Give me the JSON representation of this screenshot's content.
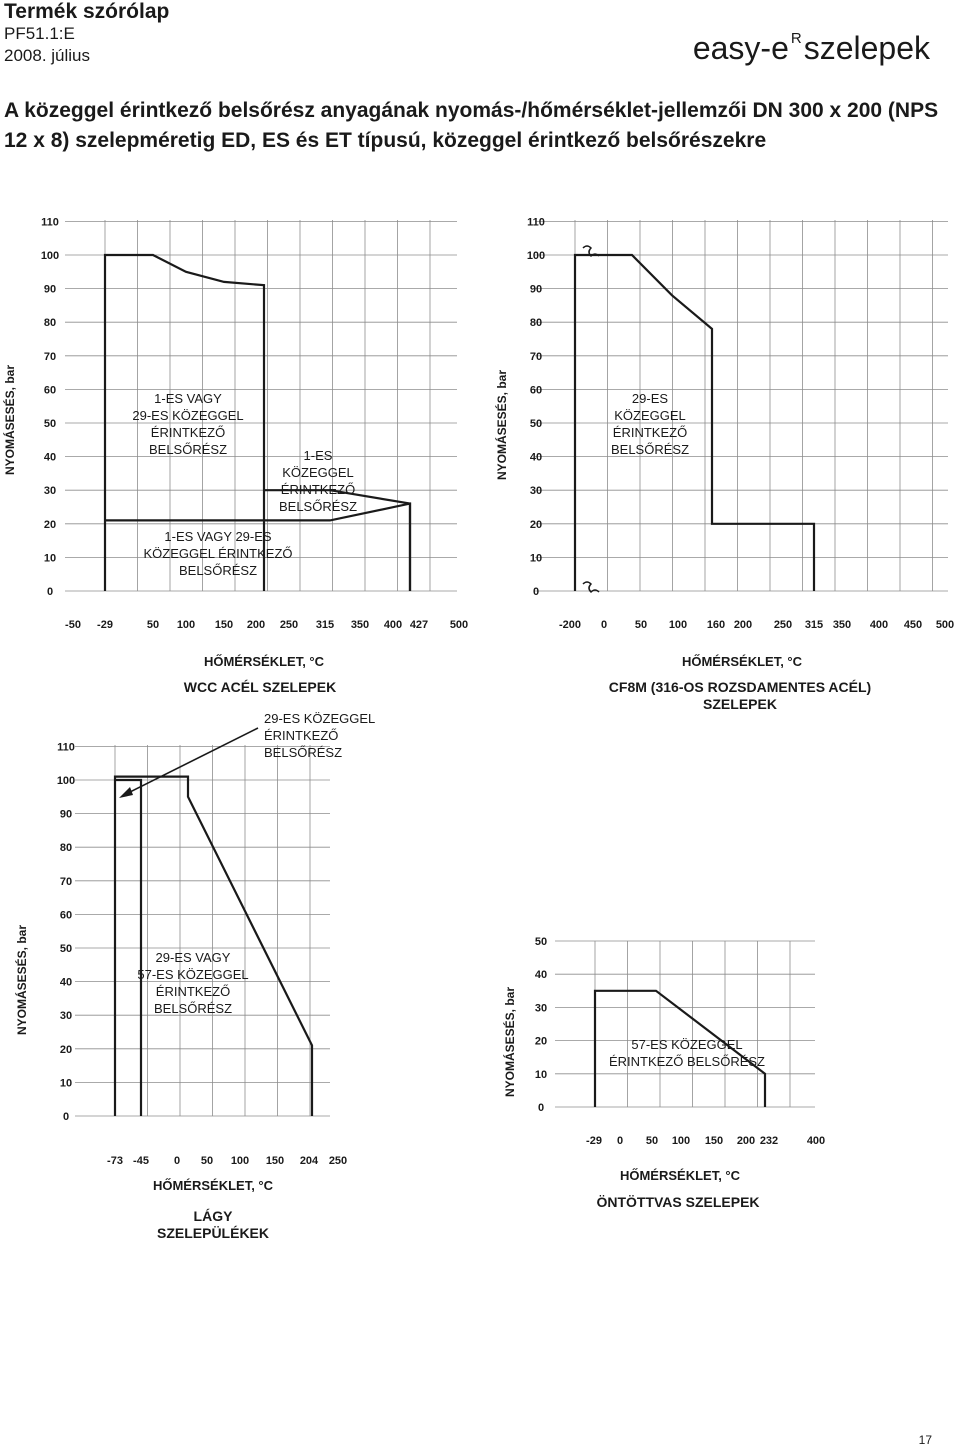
{
  "header": {
    "title": "Termék szórólap",
    "code": "PF51.1:E",
    "date": "2008. július",
    "brand_name": "easy-e",
    "brand_mark": "R",
    "brand_suffix": "szelepek"
  },
  "section_title": "A közeggel érintkező belsőrész anyagának nyomás-/hőmérséklet-jellemzői DN 300 x 200 (NPS 12 x 8) szelepméretig ED, ES és ET típusú, közeggel érintkező belsőrészekre",
  "page_number": "17",
  "chart_data": [
    {
      "type": "line",
      "ylabel": "NYOMÁSESÉS, bar",
      "xlabel": "HŐMÉRSÉKLET, °C",
      "caption": "WCC ACÉL SZELEPEK",
      "x_ticks": [
        "-50",
        "-29",
        "50",
        "100",
        "150",
        "200",
        "250",
        "315",
        "350",
        "400",
        "427",
        "500"
      ],
      "y_ticks": [
        "0",
        "10",
        "20",
        "30",
        "40",
        "50",
        "60",
        "70",
        "80",
        "90",
        "100",
        "110"
      ],
      "ylim": [
        0,
        110
      ],
      "series": [
        {
          "x": [
            -29,
            -29,
            50,
            100,
            150,
            250,
            250
          ],
          "y": [
            0,
            100,
            100,
            95,
            92,
            91,
            0
          ]
        },
        {
          "x": [
            -29,
            315,
            427,
            427
          ],
          "y": [
            21,
            21,
            26,
            0
          ]
        },
        {
          "x": [
            250,
            315,
            427,
            427
          ],
          "y": [
            30,
            30,
            26,
            0
          ]
        }
      ],
      "annotations": [
        {
          "lines": [
            "1-ES VAGY",
            "29-ES KÖZEGGEL",
            "ÉRINTKEZŐ",
            "BELSŐRÉSZ"
          ]
        },
        {
          "lines": [
            "1-ES",
            "KÖZEGGEL",
            "ÉRINTKEZŐ",
            "BELSŐRÉSZ"
          ]
        },
        {
          "lines": [
            "1-ES VAGY 29-ES",
            "KÖZEGGEL ÉRINTKEZŐ",
            "BELSŐRÉSZ"
          ]
        }
      ]
    },
    {
      "type": "line",
      "ylabel": "NYOMÁSESÉS, bar",
      "xlabel": "HŐMÉRSÉKLET, °C",
      "caption": "CF8M (316-OS ROZSDAMENTES ACÉL) SZELEPEK",
      "x_ticks": [
        "-200",
        "0",
        "50",
        "100",
        "160",
        "200",
        "250",
        "315",
        "350",
        "400",
        "450",
        "500"
      ],
      "y_ticks": [
        "0",
        "10",
        "20",
        "30",
        "40",
        "50",
        "60",
        "70",
        "80",
        "90",
        "100",
        "110"
      ],
      "ylim": [
        0,
        110
      ],
      "series": [
        {
          "x": [
            -200,
            -200,
            50,
            100,
            160,
            160,
            315,
            315
          ],
          "y": [
            0,
            100,
            100,
            88,
            78,
            20,
            20,
            0
          ]
        }
      ],
      "annotations": [
        {
          "lines": [
            "29-ES",
            "KÖZEGGEL",
            "ÉRINTKEZŐ",
            "BELSŐRÉSZ"
          ]
        }
      ]
    },
    {
      "type": "line",
      "ylabel": "NYOMÁSESÉS, bar",
      "xlabel": "HŐMÉRSÉKLET, °C",
      "caption": "LÁGY SZELEPÜLÉKEK",
      "x_ticks": [
        "-73",
        "-45",
        "0",
        "50",
        "100",
        "150",
        "204",
        "250"
      ],
      "y_ticks": [
        "0",
        "10",
        "20",
        "30",
        "40",
        "50",
        "60",
        "70",
        "80",
        "90",
        "100",
        "110"
      ],
      "ylim": [
        0,
        110
      ],
      "series": [
        {
          "x": [
            -73,
            -73,
            50,
            50,
            204,
            204
          ],
          "y": [
            0,
            101,
            101,
            95,
            21,
            0
          ]
        },
        {
          "x": [
            -45,
            -45,
            -73
          ],
          "y": [
            0,
            100,
            100
          ]
        }
      ],
      "annotations": [
        {
          "lines": [
            "29-ES KÖZEGGEL",
            "ÉRINTKEZŐ",
            "BELSŐRÉSZ"
          ]
        },
        {
          "lines": [
            "29-ES VAGY",
            "57-ES KÖZEGGEL",
            "ÉRINTKEZŐ",
            "BELSŐRÉSZ"
          ]
        }
      ]
    },
    {
      "type": "line",
      "ylabel": "NYOMÁSESÉS, bar",
      "xlabel": "HŐMÉRSÉKLET, °C",
      "caption": "ÖNTÖTTVAS SZELEPEK",
      "x_ticks": [
        "-29",
        "0",
        "50",
        "100",
        "150",
        "200",
        "232",
        "400"
      ],
      "y_ticks": [
        "0",
        "10",
        "20",
        "30",
        "40",
        "50"
      ],
      "ylim": [
        0,
        50
      ],
      "series": [
        {
          "x": [
            -29,
            -29,
            66,
            232,
            232
          ],
          "y": [
            0,
            35,
            35,
            10,
            0
          ]
        }
      ],
      "annotations": [
        {
          "lines": [
            "57-ES KÖZEGGEL",
            "ÉRINTKEZŐ BELSŐRÉSZ"
          ]
        }
      ]
    }
  ]
}
